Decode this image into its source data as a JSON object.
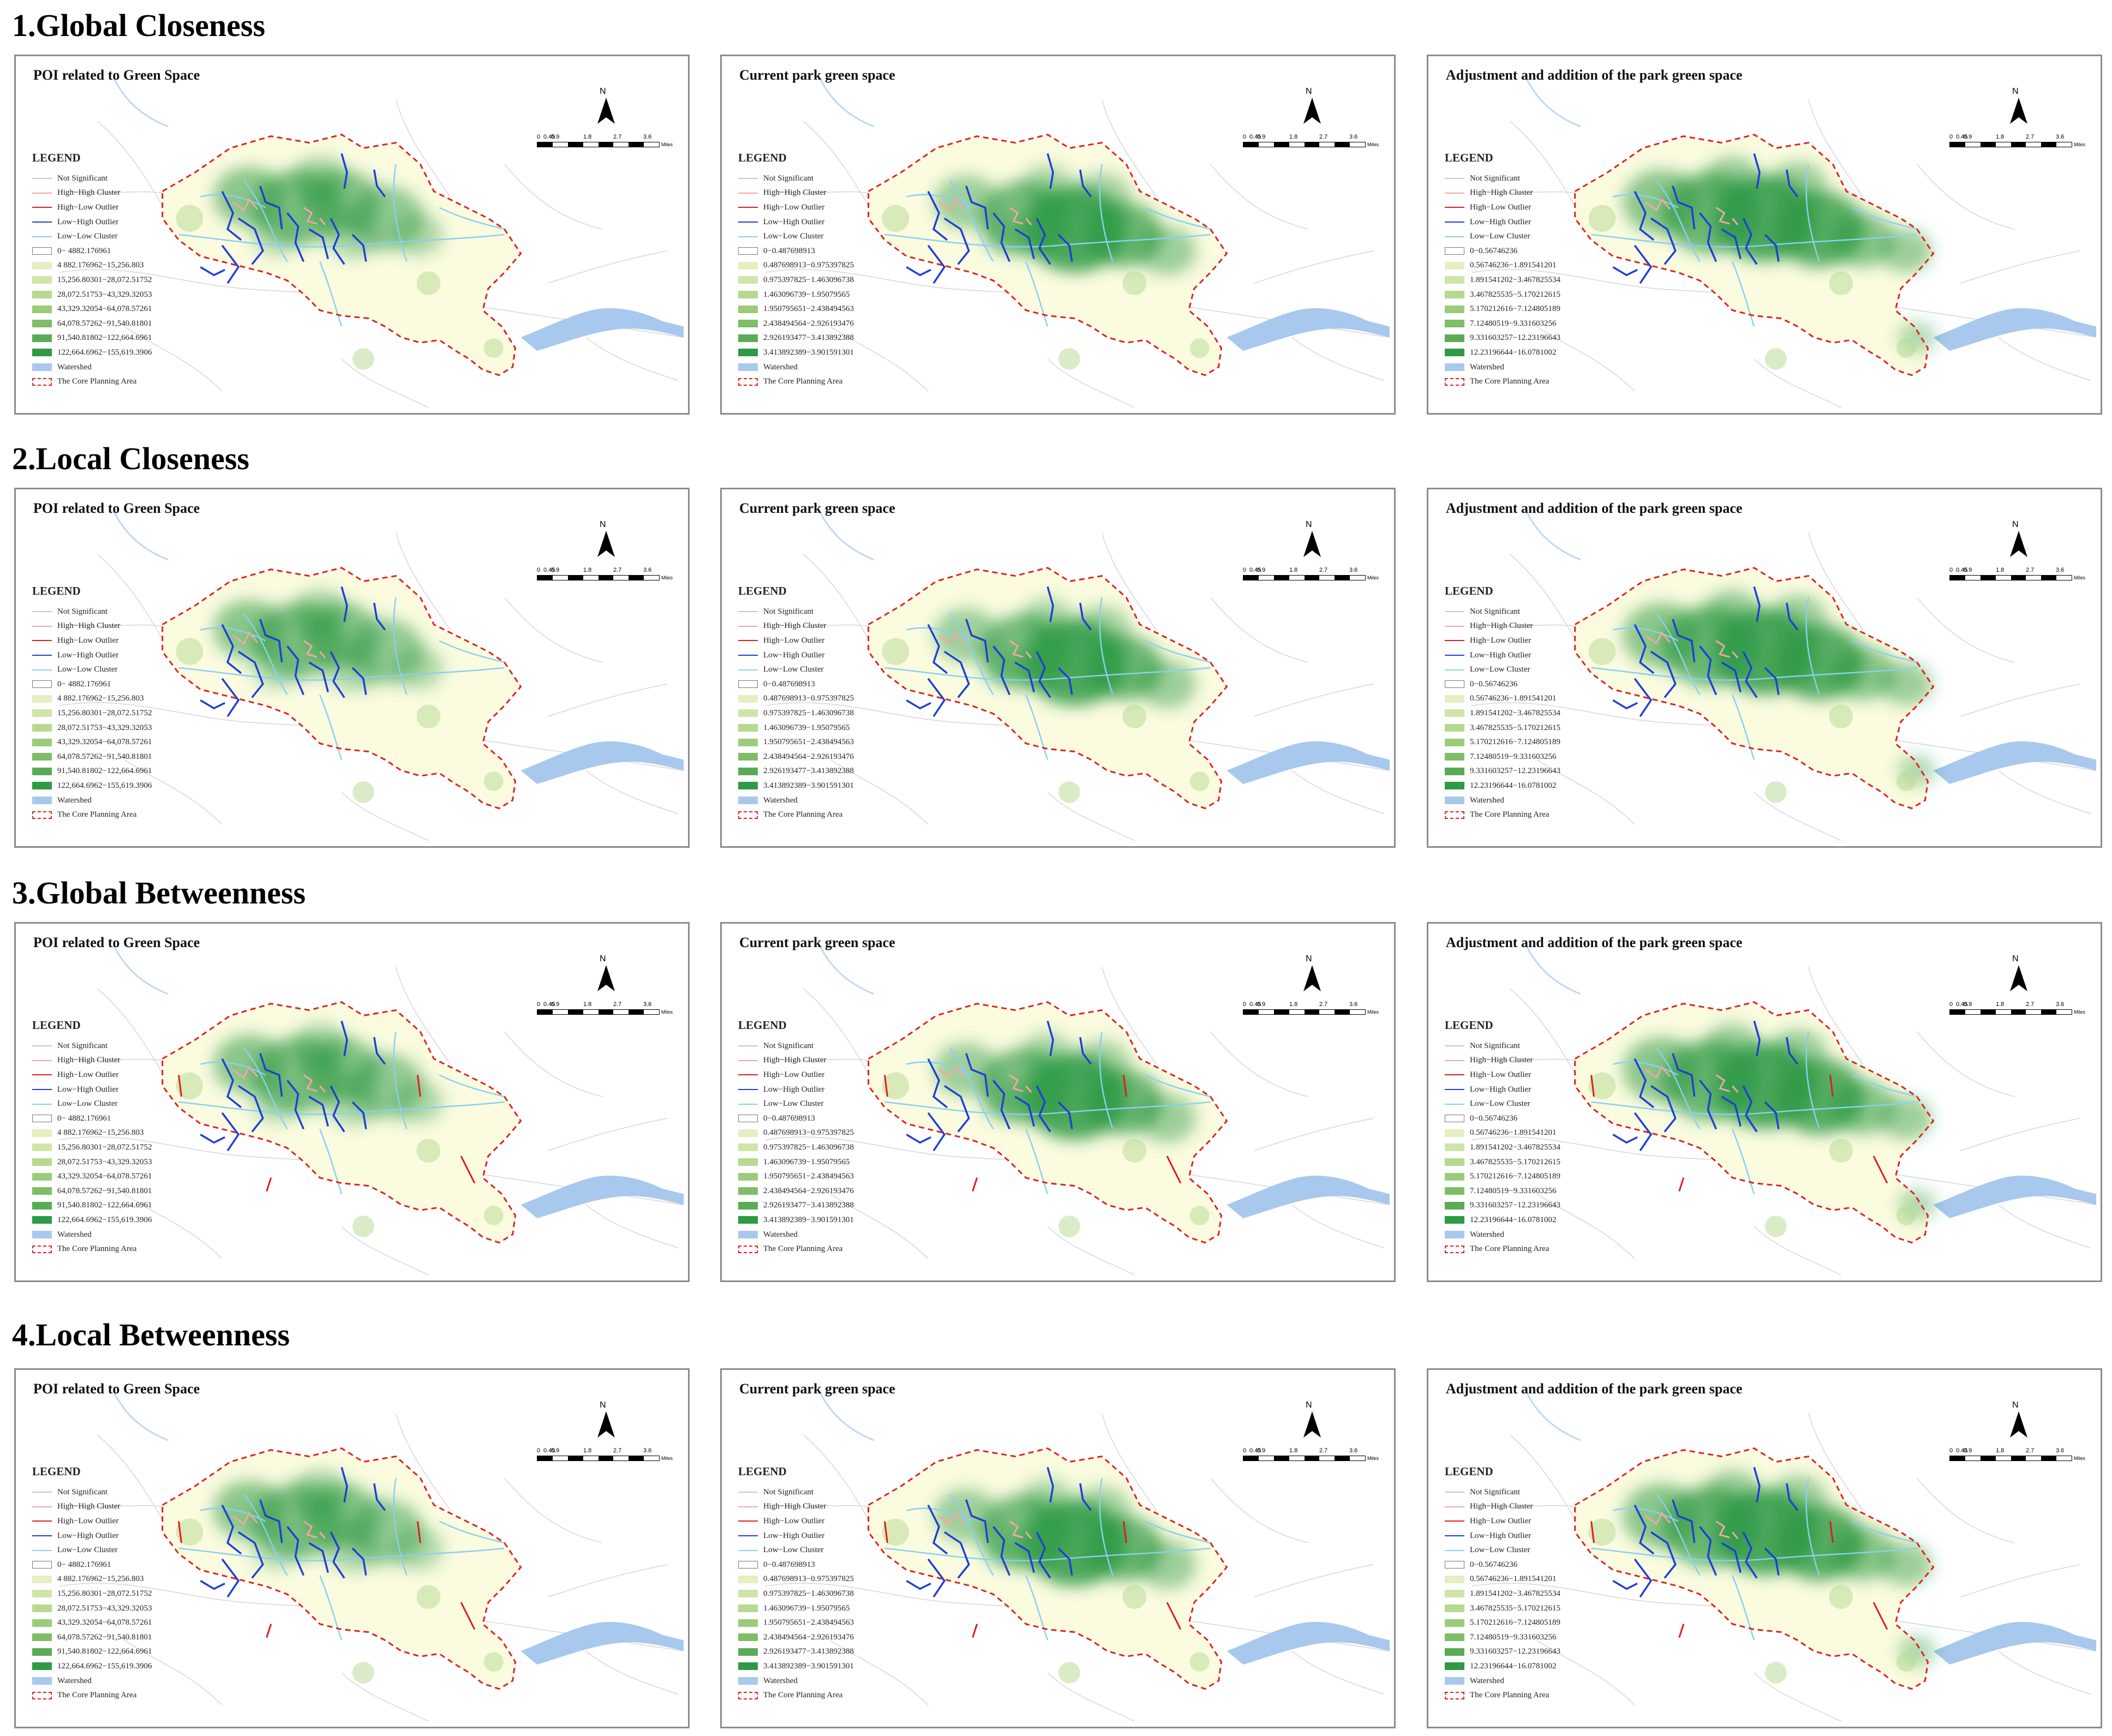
{
  "sections": [
    {
      "title": "1.Global Closeness"
    },
    {
      "title": "2.Local Closeness"
    },
    {
      "title": "3.Global Betweenness"
    },
    {
      "title": "4.Local Betweenness"
    }
  ],
  "panel_titles": [
    "POI related to Green Space",
    "Current park green space",
    "Adjustment and addition of the park green space"
  ],
  "legend": {
    "title": "LEGEND",
    "lisa_items": [
      {
        "label": "Not Significant",
        "color": "#c8c8c8"
      },
      {
        "label": "High−High Cluster",
        "color": "#f4a6a6"
      },
      {
        "label": "High−Low Outlier",
        "color": "#e31a1c"
      },
      {
        "label": "Low−High Outlier",
        "color": "#1f3fd6"
      },
      {
        "label": "Low−Low Cluster",
        "color": "#8ad0f0"
      }
    ],
    "density_colors": [
      "#ffffff",
      "#e4efc2",
      "#cfe5a8",
      "#b6d98f",
      "#9ccb7a",
      "#7fbd68",
      "#5aab56",
      "#2e9a45",
      "#128a3a"
    ],
    "density_classes": [
      [
        "0− 4882.176961",
        "4 882.176962−15,256.803",
        "15,256.80301−28,072.51752",
        "28,072.51753−43,329.32053",
        "43,329.32054−64,078.57261",
        "64,078.57262−91,540.81801",
        "91,540.81802−122,664.6961",
        "122,664.6962−155,619.3906"
      ],
      [
        "0−0.487698913",
        "0.487698913−0.975397825",
        "0.975397825−1.463096738",
        "1.463096739−1.95079565",
        "1.950795651−2.438494563",
        "2.438494564−2.926193476",
        "2.926193477−3.413892388",
        "3.413892389−3.901591301"
      ],
      [
        "0−0.56746236",
        "0.56746236−1.891541201",
        "1.891541202−3.467825534",
        "3.467825535−5.170212615",
        "5.170212616−7.124805189",
        "7.12480519−9.331603256",
        "9.331603257−12.23196643",
        "12.23196644−16.0781002"
      ]
    ],
    "watershed_label": "Watershed",
    "watershed_color": "#a8c8ee",
    "core_area_label": "The Core Planning Area",
    "core_area_color": "#e02020"
  },
  "north_label": "N",
  "scale": {
    "ticks": [
      "0",
      "0.45",
      "0.9",
      "1.8",
      "2.7",
      "3.6"
    ],
    "unit": "Miles"
  }
}
